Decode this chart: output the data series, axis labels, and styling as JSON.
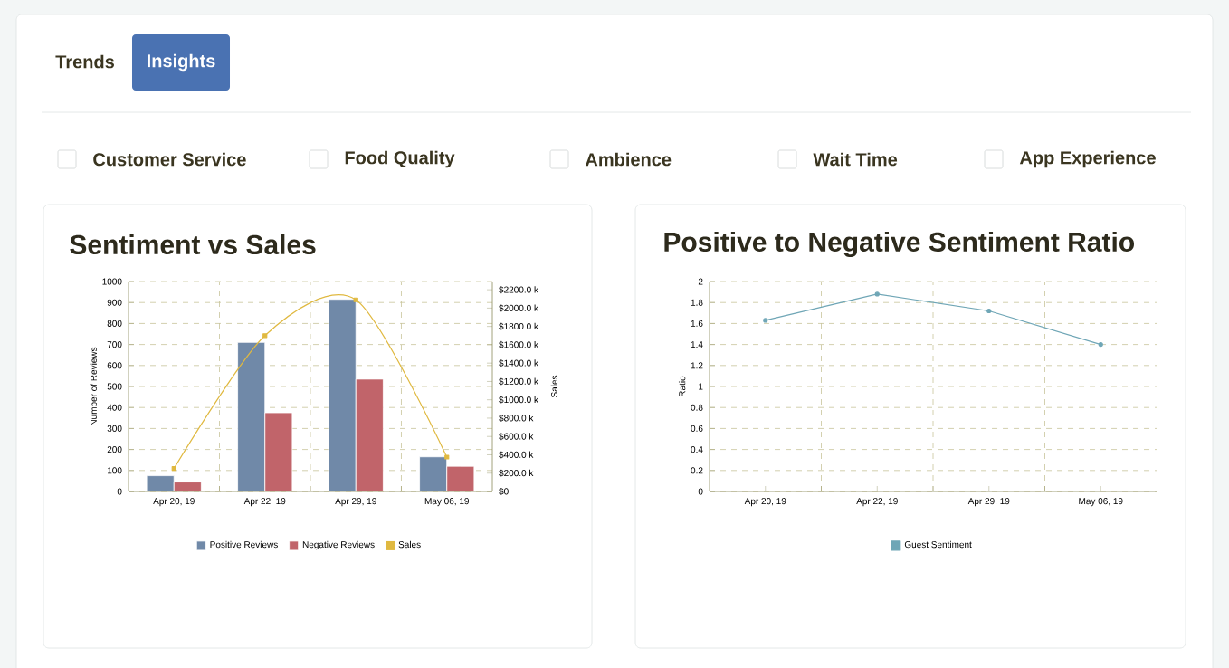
{
  "chart_data": [
    {
      "type": "other",
      "annotations": [
        "Trends",
        "Insights",
        "Customer Service",
        "Food Quality",
        "Ambience",
        "Wait Time",
        "App Experience"
      ]
    },
    {
      "type": "bar",
      "title": "Sentiment vs Sales",
      "ylabel": "Number of Reviews",
      "y2label": "Sales",
      "categories": [
        "Apr 20, 19",
        "Apr 22, 19",
        "Apr 29, 19",
        "May 06, 19"
      ],
      "series": [
        {
          "name": "Positive Reviews",
          "color": "#7089a8",
          "values": [
            75,
            710,
            915,
            165
          ]
        },
        {
          "name": "Negative Reviews",
          "color": "#c1646a",
          "values": [
            45,
            375,
            535,
            120
          ]
        },
        {
          "name": "Sales",
          "type": "line",
          "axis": "y2",
          "color": "#e0b940",
          "values": [
            250,
            1700,
            2090,
            375
          ]
        }
      ],
      "ylim": [
        0,
        1000
      ],
      "yticks": [
        0,
        100,
        200,
        300,
        400,
        500,
        600,
        700,
        800,
        900,
        1000
      ],
      "y2lim": [
        0,
        2290
      ],
      "y2ticks": [
        {
          "value": 0,
          "label": "$0"
        },
        {
          "value": 200,
          "label": "$200.0 k"
        },
        {
          "value": 400,
          "label": "$400.0 k"
        },
        {
          "value": 600,
          "label": "$600.0 k"
        },
        {
          "value": 800,
          "label": "$800.0 k"
        },
        {
          "value": 1000,
          "label": "$1000.0 k"
        },
        {
          "value": 1200,
          "label": "$1200.0 k"
        },
        {
          "value": 1400,
          "label": "$1400.0 k"
        },
        {
          "value": 1600,
          "label": "$1600.0 k"
        },
        {
          "value": 1800,
          "label": "$1800.0 k"
        },
        {
          "value": 2000,
          "label": "$2000.0 k"
        },
        {
          "value": 2200,
          "label": "$2200.0 k"
        }
      ],
      "grid": true,
      "legend": "bottom",
      "marker": "square"
    },
    {
      "type": "line",
      "title": "Positive to Negative Sentiment Ratio",
      "ylabel": "Ratio",
      "categories": [
        "Apr 20, 19",
        "Apr 22, 19",
        "Apr 29, 19",
        "May 06, 19"
      ],
      "series": [
        {
          "name": "Guest Sentiment",
          "color": "#6fa6b6",
          "values": [
            1.63,
            1.88,
            1.72,
            1.4
          ]
        }
      ],
      "ylim": [
        0,
        2
      ],
      "yticks": [
        0,
        0.2,
        0.4,
        0.6,
        0.8,
        1,
        1.2,
        1.4,
        1.6,
        1.8,
        2
      ],
      "grid": true,
      "legend": "bottom",
      "marker": "circle"
    }
  ]
}
